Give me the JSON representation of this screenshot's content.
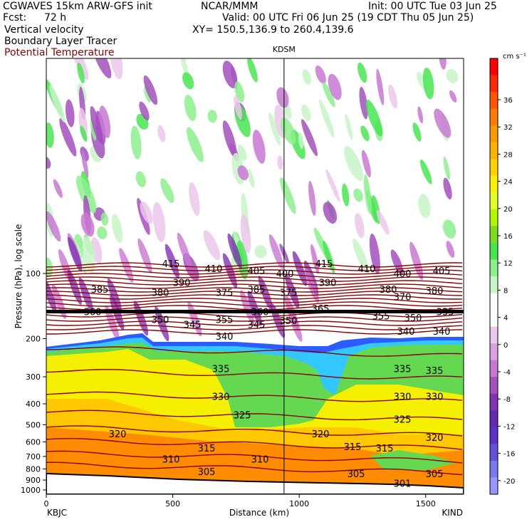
{
  "header": {
    "model": "CGWAVES 15km ARW-GFS init",
    "org": "NCAR/MMM",
    "init": "Init: 00 UTC Tue 03 Jun 25",
    "fcst_label": "Fcst:",
    "fcst_value": "72 h",
    "valid": "Valid: 00 UTC Fri 06 Jun 25 (19 CDT Thu 05 Jun 25)",
    "xy": "XY= 150.5,136.9 to 260.4,139.6"
  },
  "legend": {
    "fields": [
      "Vertical velocity",
      "Boundary Layer Tracer",
      "Potential Temperature"
    ],
    "colors": {
      "field": "#000000",
      "theta": "#8b0000"
    }
  },
  "chart_data": {
    "type": "heatmap",
    "title": "",
    "station_marker": "KDSM",
    "station_marker_km": 940,
    "xlabel": "Distance (km)",
    "ylabel": "Pressure (hPa), log scale",
    "x_endpoints": [
      "KBJC",
      "KIND"
    ],
    "xlim": [
      0,
      1650
    ],
    "x_ticks": [
      0,
      500,
      1000,
      1500
    ],
    "y_scale": "log",
    "y_ticks": [
      100,
      200,
      300,
      400,
      500,
      600,
      700,
      800,
      900,
      1000
    ],
    "colorbar": {
      "unit": "cm s⁻¹",
      "labels": [
        36,
        32,
        28,
        24,
        20,
        16,
        12,
        8,
        4,
        0,
        -4,
        -8,
        -12,
        -16,
        -20
      ],
      "colors": [
        "#ff0000",
        "#ff2a00",
        "#ff5500",
        "#ff7a00",
        "#ff9900",
        "#ffb300",
        "#ffd200",
        "#fff000",
        "#e1ff2a",
        "#b4f500",
        "#7ddc1e",
        "#46e650",
        "#8cf08c",
        "#c8f5c8",
        "#ffffff",
        "#ffffff",
        "#ebc8eb",
        "#dba0e0",
        "#c878d2",
        "#a550be",
        "#8232b4",
        "#6428b4",
        "#5a32c8",
        "#6450dc",
        "#7878f0",
        "#9696ff"
      ]
    },
    "potential_temperature_labels": [
      {
        "text": "415",
        "x": 240,
        "p": 90
      },
      {
        "text": "410",
        "x": 300,
        "p": 95
      },
      {
        "text": "405",
        "x": 360,
        "p": 97
      },
      {
        "text": "400",
        "x": 400,
        "p": 100
      },
      {
        "text": "415",
        "x": 455,
        "p": 90
      },
      {
        "text": "410",
        "x": 515,
        "p": 95
      },
      {
        "text": "400",
        "x": 565,
        "p": 100
      },
      {
        "text": "405",
        "x": 620,
        "p": 97
      },
      {
        "text": "390",
        "x": 255,
        "p": 110
      },
      {
        "text": "385",
        "x": 140,
        "p": 118
      },
      {
        "text": "380",
        "x": 225,
        "p": 122
      },
      {
        "text": "375",
        "x": 315,
        "p": 122
      },
      {
        "text": "385",
        "x": 360,
        "p": 118
      },
      {
        "text": "375",
        "x": 405,
        "p": 122
      },
      {
        "text": "390",
        "x": 460,
        "p": 110
      },
      {
        "text": "380",
        "x": 545,
        "p": 118
      },
      {
        "text": "370",
        "x": 565,
        "p": 128
      },
      {
        "text": "380",
        "x": 610,
        "p": 120
      },
      {
        "text": "350",
        "x": 225,
        "p": 163
      },
      {
        "text": "355",
        "x": 315,
        "p": 163
      },
      {
        "text": "345",
        "x": 270,
        "p": 172
      },
      {
        "text": "345",
        "x": 360,
        "p": 172
      },
      {
        "text": "350",
        "x": 405,
        "p": 165
      },
      {
        "text": "355",
        "x": 535,
        "p": 157
      },
      {
        "text": "350",
        "x": 580,
        "p": 160
      },
      {
        "text": "340",
        "x": 315,
        "p": 195
      },
      {
        "text": "340",
        "x": 570,
        "p": 185
      },
      {
        "text": "340",
        "x": 620,
        "p": 185
      },
      {
        "text": "335",
        "x": 310,
        "p": 275
      },
      {
        "text": "335",
        "x": 565,
        "p": 275
      },
      {
        "text": "335",
        "x": 610,
        "p": 280
      },
      {
        "text": "330",
        "x": 310,
        "p": 370
      },
      {
        "text": "330",
        "x": 565,
        "p": 370
      },
      {
        "text": "330",
        "x": 610,
        "p": 370
      },
      {
        "text": "325",
        "x": 340,
        "p": 450
      },
      {
        "text": "325",
        "x": 565,
        "p": 470
      },
      {
        "text": "320",
        "x": 165,
        "p": 550
      },
      {
        "text": "320",
        "x": 450,
        "p": 550
      },
      {
        "text": "320",
        "x": 610,
        "p": 570
      },
      {
        "text": "315",
        "x": 290,
        "p": 640
      },
      {
        "text": "315",
        "x": 495,
        "p": 630
      },
      {
        "text": "315",
        "x": 540,
        "p": 640
      },
      {
        "text": "310",
        "x": 240,
        "p": 720
      },
      {
        "text": "310",
        "x": 365,
        "p": 720
      },
      {
        "text": "305",
        "x": 290,
        "p": 820
      },
      {
        "text": "305",
        "x": 500,
        "p": 840
      },
      {
        "text": "305",
        "x": 610,
        "p": 840
      },
      {
        "text": "301",
        "x": 565,
        "p": 930
      },
      {
        "text": "360",
        "x": 130,
        "p": 150
      },
      {
        "text": "360",
        "x": 365,
        "p": 150
      },
      {
        "text": "365",
        "x": 450,
        "p": 145
      },
      {
        "text": "335",
        "x": 625,
        "p": 150
      }
    ]
  }
}
